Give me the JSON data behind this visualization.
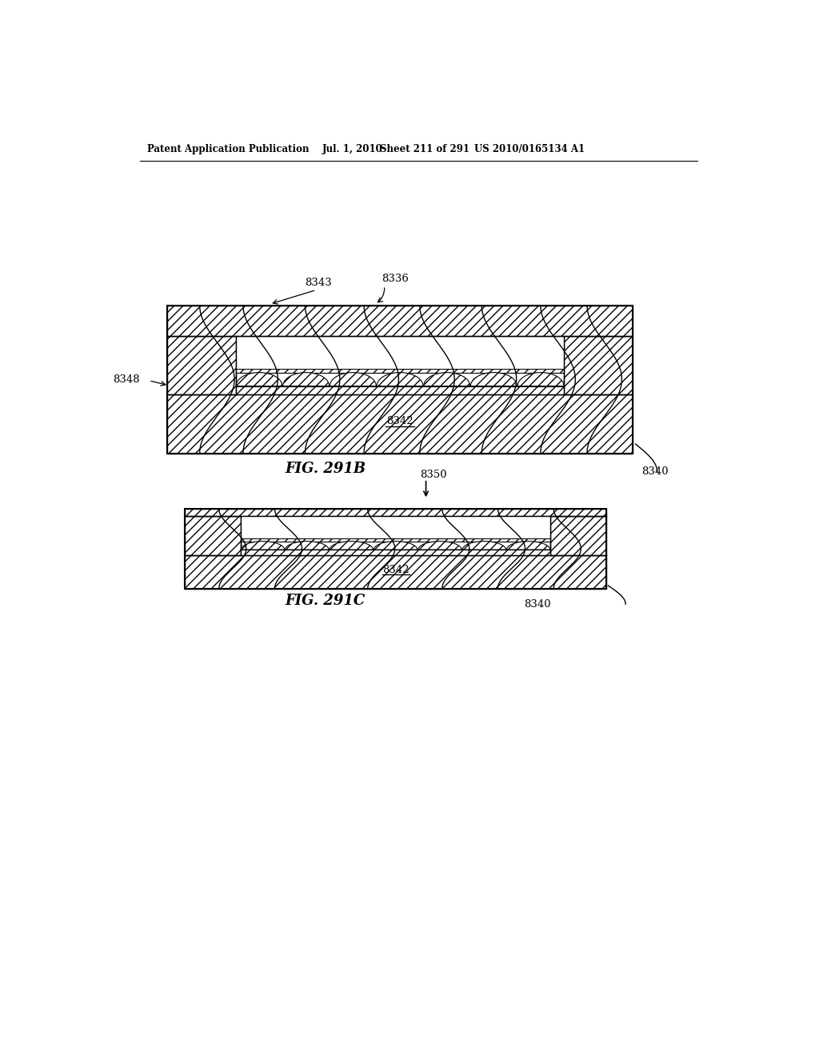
{
  "bg_color": "#ffffff",
  "header_text": "Patent Application Publication",
  "header_date": "Jul. 1, 2010",
  "header_sheet": "Sheet 211 of 291",
  "header_patent": "US 2010/0165134 A1",
  "fig_b_label": "FIG. 291B",
  "fig_c_label": "FIG. 291C",
  "label_8343": "8343",
  "label_8336": "8336",
  "label_8348": "8348",
  "label_8342_b": "8342",
  "label_8342_c": "8342",
  "label_8350": "8350",
  "label_8340_b": "8340",
  "label_8340_c": "8340"
}
